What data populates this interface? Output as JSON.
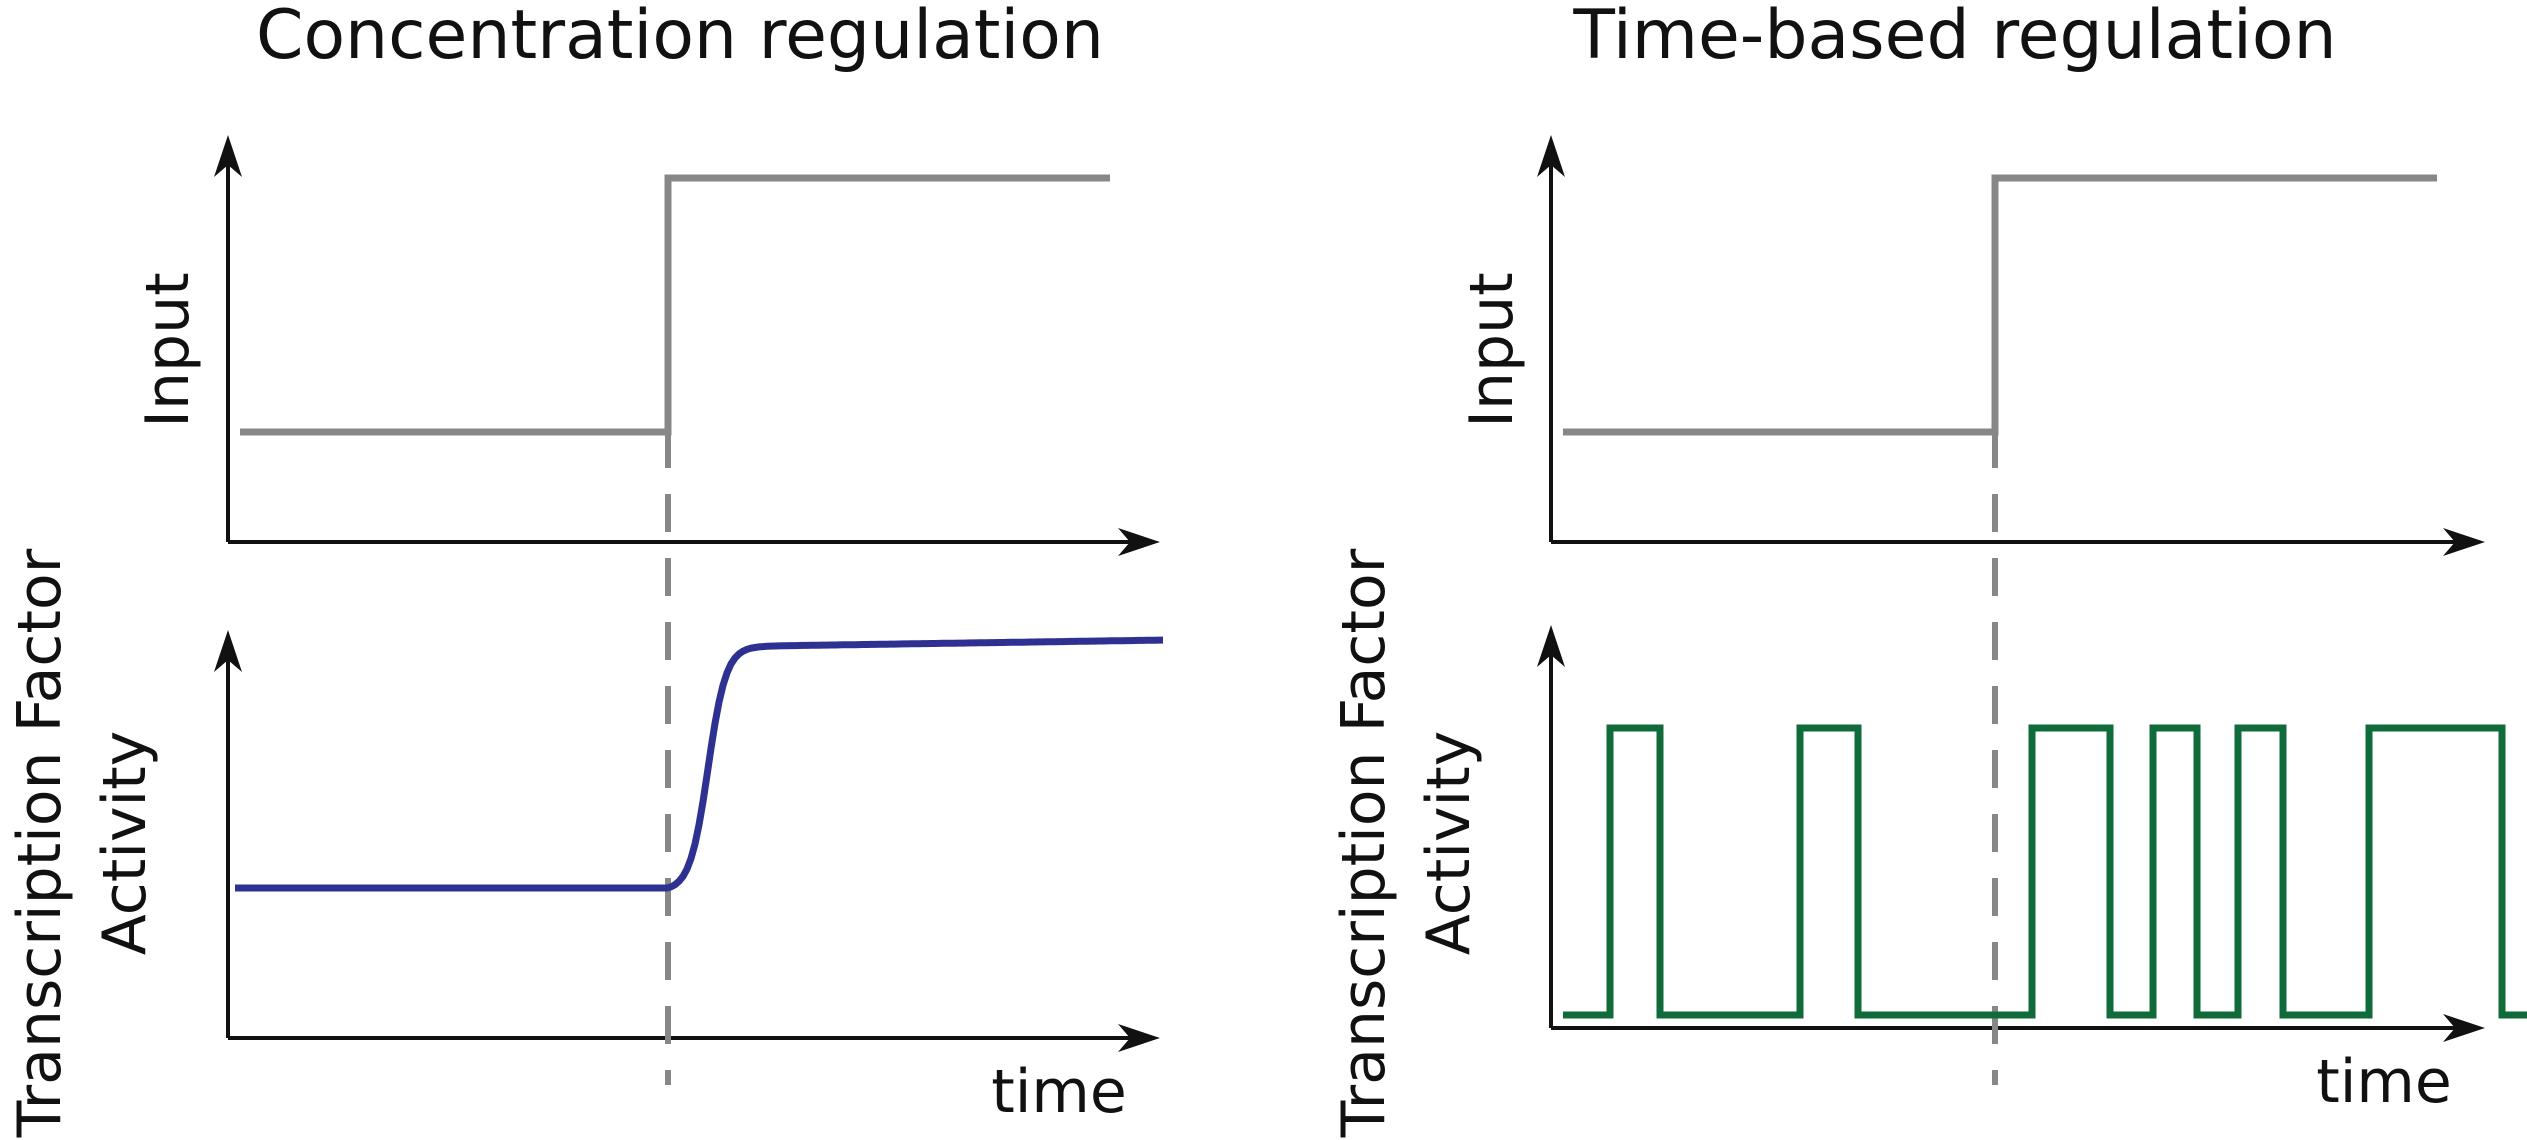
{
  "colors": {
    "axis": "#111111",
    "input_trace": "#878787",
    "dashed_marker": "#878787",
    "concentration_trace": "#2e3192",
    "pulse_trace": "#0f6b3a"
  },
  "panels": [
    {
      "title": "Concentration regulation",
      "input_axis_label": "Input",
      "output_axis_label_line1": "Transcription Factor",
      "output_axis_label_line2": "Activity",
      "time_label": "time",
      "input_signal": {
        "type": "step",
        "low": 0,
        "high": 1,
        "step_time": 0.475
      },
      "output_signal": {
        "type": "sigmoid_rise",
        "baseline": 0.3,
        "plateau": 0.82,
        "onset_time": 0.475
      }
    },
    {
      "title": "Time-based regulation",
      "input_axis_label": "Input",
      "output_axis_label_line1": "Transcription Factor",
      "output_axis_label_line2": "Activity",
      "time_label": "time",
      "input_signal": {
        "type": "step",
        "low": 0,
        "high": 1,
        "step_time": 0.475
      },
      "output_signal": {
        "type": "pulses",
        "low": 0.05,
        "high": 0.8,
        "pulse_intervals": [
          [
            0.06,
            0.12
          ],
          [
            0.27,
            0.33
          ],
          [
            0.52,
            0.6
          ],
          [
            0.64,
            0.71
          ],
          [
            0.78,
            0.84
          ],
          [
            0.92,
            1.0
          ]
        ]
      }
    }
  ]
}
